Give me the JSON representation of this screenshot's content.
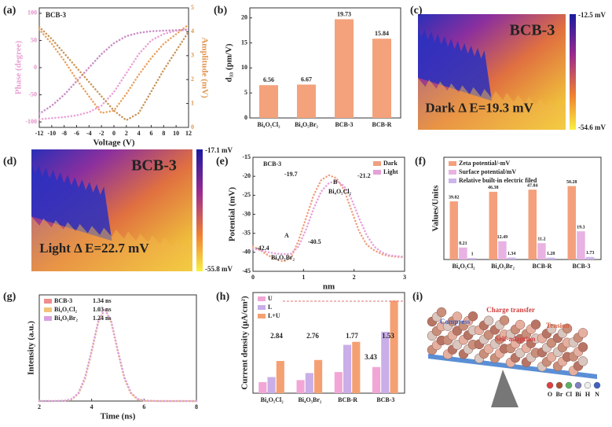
{
  "chart_data": [
    {
      "type": "line",
      "panel": "(a)",
      "annotation": "BCB-3",
      "xlabel": "Voltage (V)",
      "ylabel": "Phase (degree)",
      "y2label": "Amplitude (mV)",
      "x": [
        -12,
        -10,
        -8,
        -6,
        -4,
        -2,
        0,
        2,
        4,
        6,
        8,
        10,
        12
      ],
      "xlim": [
        -12,
        12
      ],
      "xticks": [
        -12,
        -10,
        -8,
        -6,
        -4,
        -2,
        0,
        2,
        4,
        6,
        8,
        10,
        12
      ],
      "ylim": [
        -110,
        110
      ],
      "yticks": [
        -100,
        -50,
        0,
        50,
        100
      ],
      "y2lim": [
        0,
        5
      ],
      "y2ticks": [
        0,
        1,
        2,
        3,
        4,
        5
      ],
      "series": [
        {
          "color": "#ec9fd6",
          "values": [
            -95,
            -93,
            -91,
            -88,
            -82,
            -70,
            -45,
            -10,
            25,
            50,
            62,
            68,
            70
          ]
        },
        {
          "color": "#c98ac4",
          "values": [
            -85,
            -70,
            -50,
            -25,
            0,
            25,
            45,
            58,
            64,
            67,
            68,
            69,
            70
          ]
        },
        {
          "color": "#e9a05e",
          "axis": "y2",
          "values": [
            4.1,
            3.5,
            2.8,
            2.0,
            1.3,
            0.6,
            0.7,
            1.4,
            2.2,
            2.9,
            3.5,
            3.9,
            4.3
          ]
        },
        {
          "color": "#c9955a",
          "axis": "y2",
          "values": [
            4.2,
            3.7,
            3.1,
            2.5,
            1.9,
            1.3,
            0.7,
            0.3,
            0.6,
            1.5,
            2.4,
            3.2,
            4.0
          ]
        }
      ]
    },
    {
      "type": "bar",
      "panel": "(b)",
      "ylabel": "d₃₃ (pm/V)",
      "categories": [
        "Bi₄O₅Cl₂",
        "Bi₄O₅Br₂",
        "BCB-3",
        "BCB-R"
      ],
      "values": [
        6.56,
        6.67,
        19.73,
        15.84
      ],
      "color": "#f4a27c",
      "ylim": [
        0,
        22
      ],
      "yticks": [
        0,
        5,
        10,
        15,
        20
      ]
    },
    {
      "type": "surface",
      "panel": "(c)",
      "label": "BCB-3",
      "delta": "Dark Δ E=19.3 mV",
      "scale_top": "-12.5 mV",
      "scale_bottom": "-54.6 mV"
    },
    {
      "type": "surface",
      "panel": "(d)",
      "label": "BCB-3",
      "delta": "Light Δ E=22.7 mV",
      "scale_top": "-17.1 mV",
      "scale_bottom": "-55.8 mV"
    },
    {
      "type": "line",
      "panel": "(e)",
      "xlabel": "nm",
      "ylabel": "Potential (mV)",
      "legend": "upper right",
      "annotations": [
        "BCB-3",
        "-19.7",
        "-21.2",
        "B",
        "Bi₄O₅Cl₂",
        "A",
        "-40.5",
        "-42.4",
        "Bi₄O₅Br₂"
      ],
      "x": [
        0,
        0.15,
        0.3,
        0.45,
        0.6,
        0.75,
        0.9,
        1.05,
        1.2,
        1.35,
        1.5,
        1.65,
        1.8,
        1.95,
        2.1,
        2.25,
        2.4,
        2.55,
        2.7,
        2.85,
        3.0
      ],
      "xlim": [
        0,
        3
      ],
      "xticks": [
        0,
        1,
        2,
        3
      ],
      "ylim": [
        -45,
        -15
      ],
      "yticks": [
        -45,
        -40,
        -35,
        -30,
        -25,
        -20,
        -15
      ],
      "series": [
        {
          "name": "Dark",
          "color": "#f0a07e",
          "values": [
            -38.5,
            -39.5,
            -40.8,
            -41.8,
            -42.4,
            -41.5,
            -37,
            -31,
            -25,
            -21,
            -19.7,
            -20.5,
            -23.5,
            -29,
            -34.5,
            -38,
            -39.5,
            -40.5,
            -41,
            -41.2,
            -41.3
          ]
        },
        {
          "name": "Light",
          "color": "#e6a0d8",
          "values": [
            -39,
            -39.5,
            -40,
            -40.3,
            -40.5,
            -40.4,
            -38.5,
            -34,
            -28.5,
            -24,
            -21.8,
            -21.2,
            -22.5,
            -26,
            -31,
            -35.5,
            -38.5,
            -40,
            -40.8,
            -41,
            -41.2
          ]
        }
      ]
    },
    {
      "type": "bar",
      "panel": "(f)",
      "ylabel": "Values/Units",
      "legend": "upper left",
      "data_labels": true,
      "categories": [
        "Bi₄O₅Cl₂",
        "Bi₄O₅Br₂",
        "BCB-R",
        "BCB-3"
      ],
      "ylim": [
        0,
        70
      ],
      "series": [
        {
          "name": "Zeta potential/-mV",
          "color": "#f4a07c",
          "values": [
            39.82,
            46.38,
            47.84,
            50.28
          ]
        },
        {
          "name": "Surface potential/mV",
          "color": "#e8b2e2",
          "values": [
            8.21,
            12.49,
            11.2,
            19.3
          ]
        },
        {
          "name": "Relative built-in electric filed",
          "color": "#cdb6ea",
          "values": [
            1,
            1.34,
            1.28,
            1.73
          ]
        }
      ]
    },
    {
      "type": "line",
      "panel": "(g)",
      "xlabel": "Time (ns)",
      "ylabel": "Intensity (a.u.)",
      "legend": "upper left",
      "lifetimes": [
        "1.34 ns",
        "1.03 ns",
        "1.24 ns"
      ],
      "x": [
        2,
        2.5,
        3,
        3.25,
        3.5,
        3.75,
        4,
        4.25,
        4.5,
        4.75,
        5,
        5.25,
        5.5,
        5.75,
        6,
        6.5,
        7,
        8
      ],
      "xlim": [
        2,
        8
      ],
      "xticks": [
        2,
        4,
        6,
        8
      ],
      "ylim": [
        0,
        1.15
      ],
      "series": [
        {
          "name": "BCB-3",
          "color": "#f08c8c",
          "values": [
            0,
            0,
            0.004,
            0.021,
            0.085,
            0.249,
            0.539,
            0.857,
            1,
            0.857,
            0.539,
            0.249,
            0.085,
            0.021,
            0.004,
            0,
            0,
            0
          ]
        },
        {
          "name": "Bi₄O₅Cl₂",
          "color": "#f2c27a",
          "values": [
            0,
            0,
            0.003,
            0.018,
            0.08,
            0.24,
            0.53,
            0.85,
            1,
            0.85,
            0.53,
            0.24,
            0.08,
            0.018,
            0.003,
            0,
            0,
            0
          ]
        },
        {
          "name": "Bi₄O₅Br₂",
          "color": "#d9a0e0",
          "values": [
            0,
            0,
            0.005,
            0.024,
            0.09,
            0.26,
            0.55,
            0.86,
            1,
            0.86,
            0.55,
            0.26,
            0.09,
            0.024,
            0.005,
            0,
            0,
            0
          ]
        }
      ]
    },
    {
      "type": "bar",
      "panel": "(h)",
      "ylabel": "Current density (μA/cm²)",
      "legend": "upper left",
      "annotations": [
        "2.84",
        "2.76",
        "1.77",
        "3.43",
        "1.53"
      ],
      "categories": [
        "Bi₄O₅Cl₂",
        "Bi₄O₅Br₂",
        "BCB-R",
        "BCB-3"
      ],
      "ylim": [
        0,
        5
      ],
      "series": [
        {
          "name": "U",
          "color": "#f2a6d6",
          "values": [
            0.55,
            0.65,
            1.05,
            1.3
          ]
        },
        {
          "name": "L",
          "color": "#c9aee8",
          "values": [
            0.8,
            1.0,
            2.4,
            3.05
          ]
        },
        {
          "name": "L+U",
          "color": "#f5a072",
          "values": [
            1.6,
            1.65,
            2.55,
            4.6
          ]
        }
      ]
    },
    {
      "type": "diagram",
      "panel": "(i)",
      "title": "Charge transfer",
      "left": "Compress",
      "right": "Tension",
      "center": "Self-adaption",
      "atoms": [
        "O",
        "Br",
        "Cl",
        "Bi",
        "H",
        "N"
      ]
    }
  ]
}
